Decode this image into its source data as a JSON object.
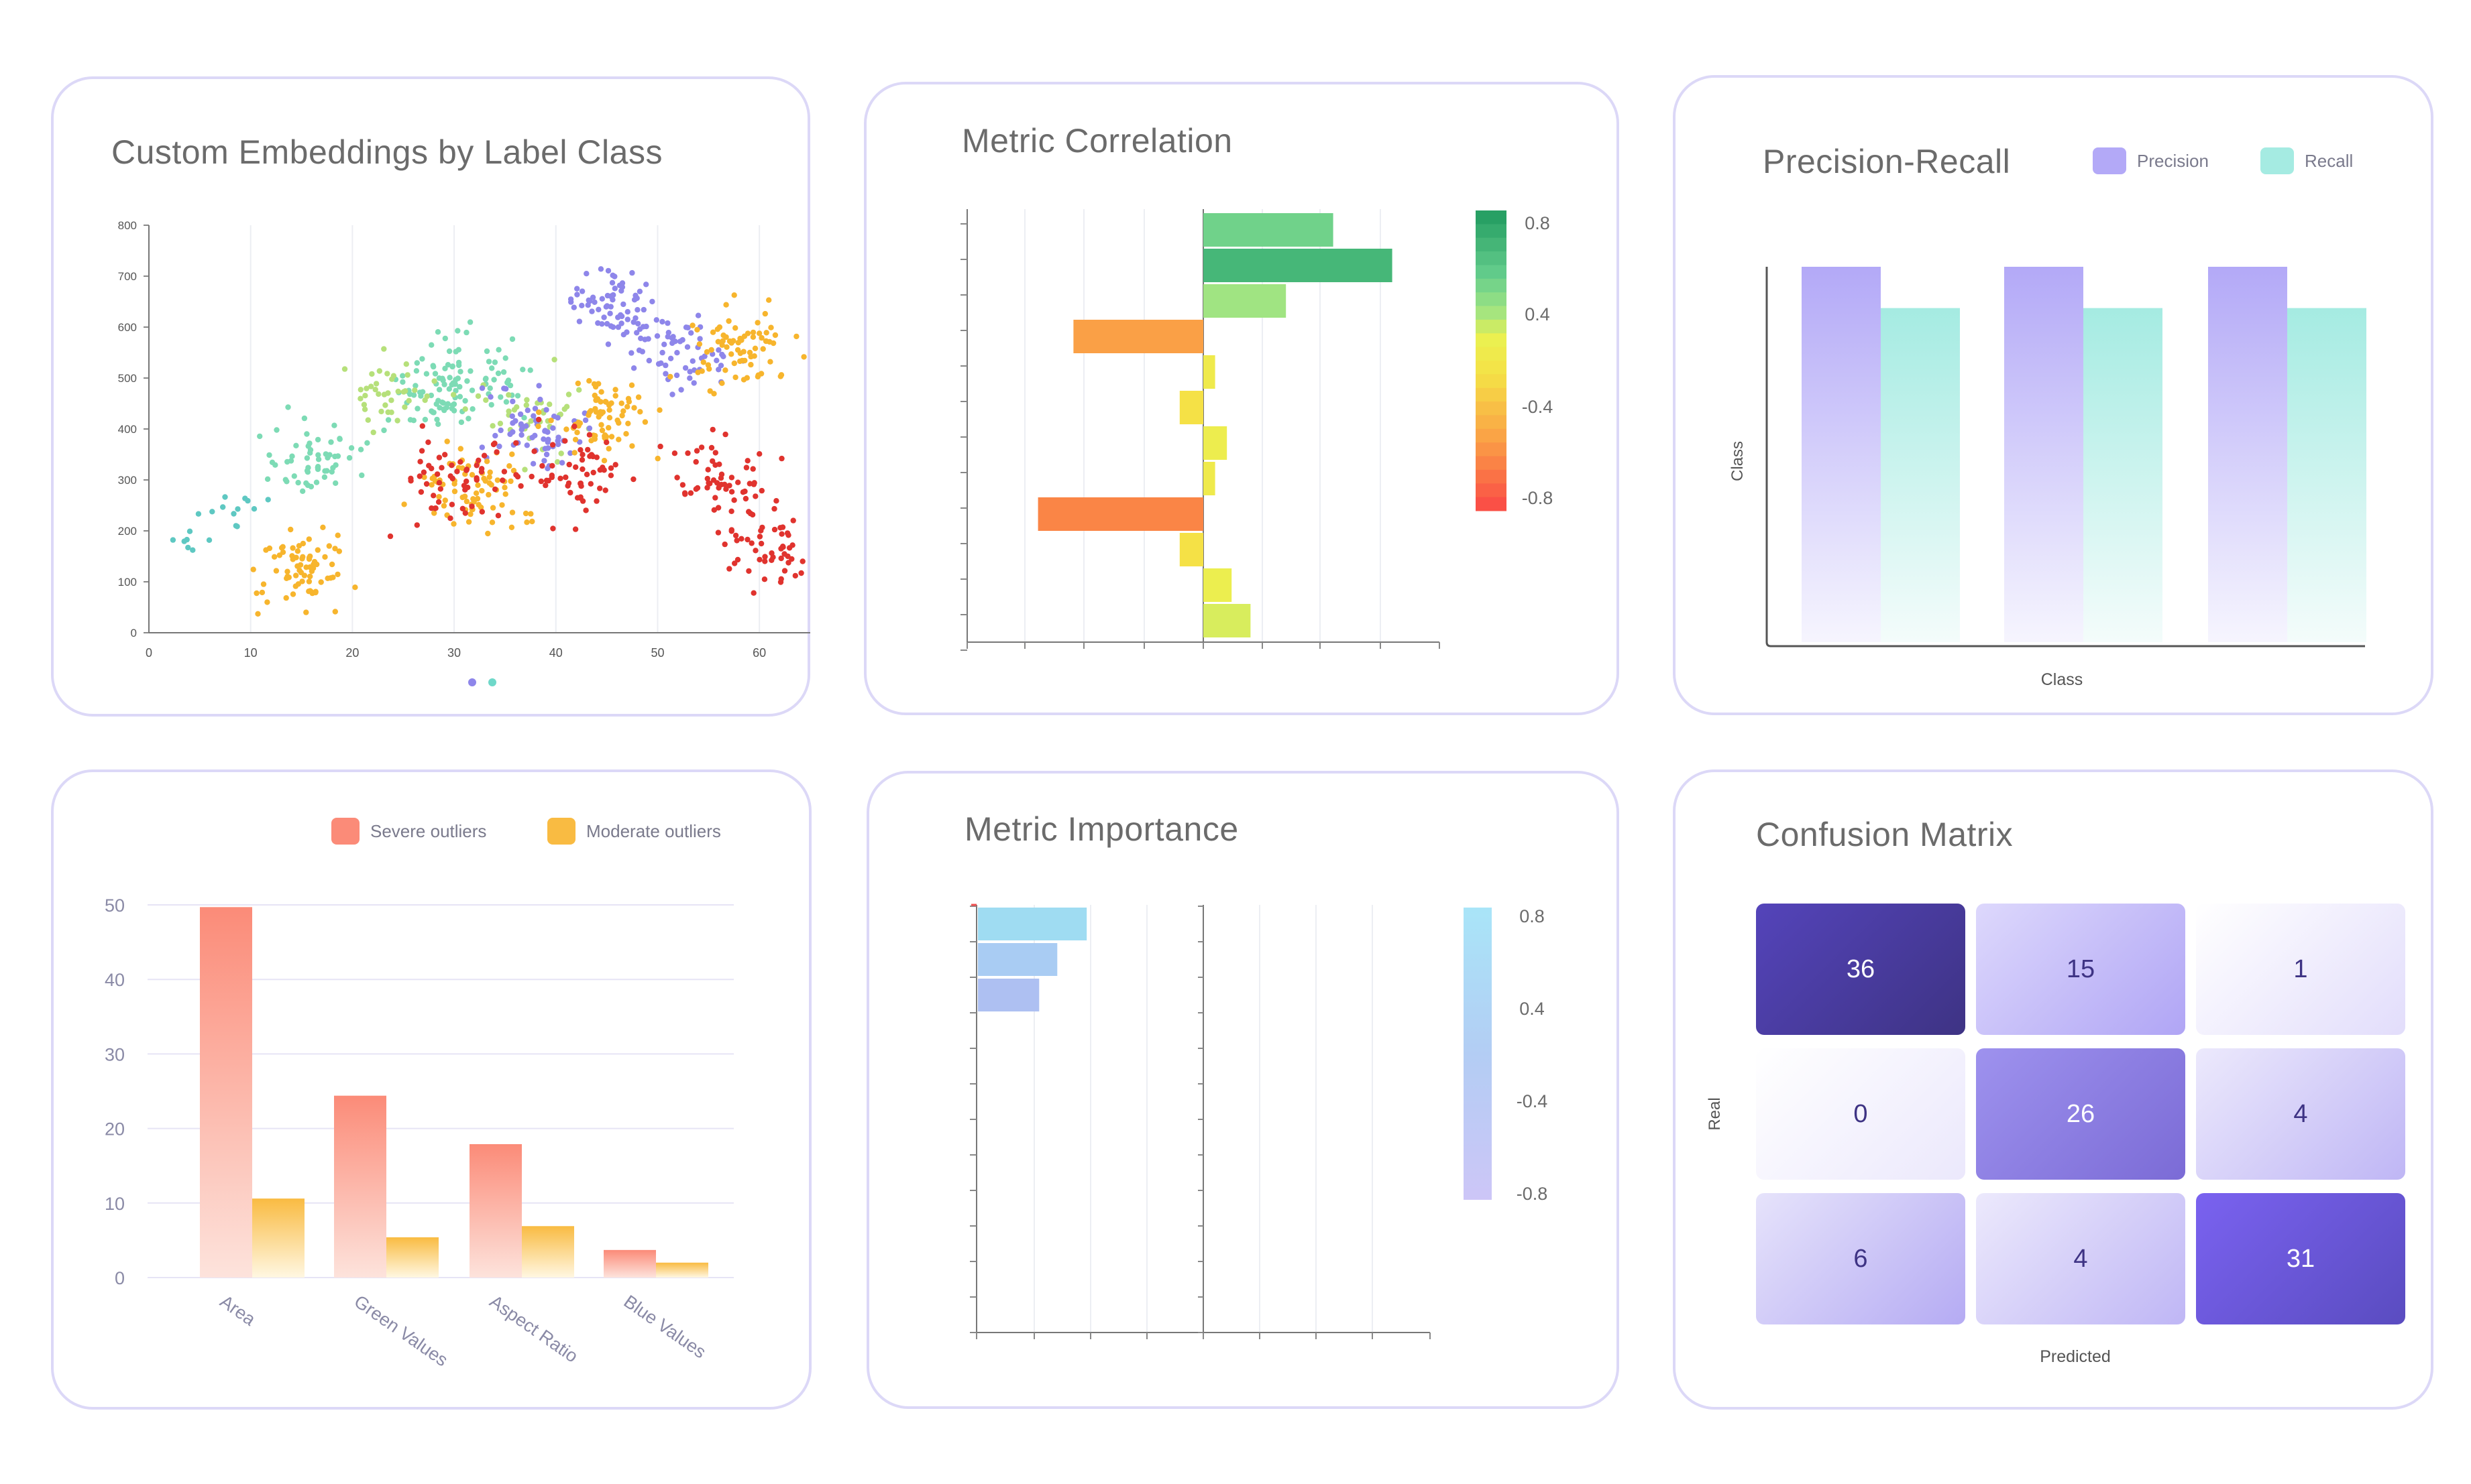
{
  "colors": {
    "card_border": "#dcd8f7",
    "title": "#6b6b6b",
    "precision": "#b3a9f7",
    "recall": "#a5ebe2",
    "severe": "#fb8b78",
    "moderate": "#f9bb42"
  },
  "cards": {
    "embeddings": {
      "title": "Custom Embeddings by Label Class"
    },
    "correlation": {
      "title": "Metric Correlation"
    },
    "precision_recall": {
      "title": "Precision-Recall",
      "legend": [
        "Precision",
        "Recall"
      ],
      "xlabel": "Class",
      "ylabel": "Class"
    },
    "outliers": {
      "legend": [
        "Severe outliers",
        "Moderate outliers"
      ]
    },
    "importance": {
      "title": "Metric Importance"
    },
    "confusion": {
      "title": "Confusion Matrix",
      "xlabel": "Predicted",
      "ylabel": "Real"
    }
  },
  "chart_data": [
    {
      "id": "embeddings",
      "type": "scatter",
      "title": "Custom Embeddings by Label Class",
      "xlim": [
        0,
        65
      ],
      "ylim": [
        0,
        800
      ],
      "x_ticks": [
        0,
        10,
        20,
        30,
        40,
        50,
        60
      ],
      "y_ticks": [
        0,
        100,
        200,
        300,
        400,
        500,
        600,
        700,
        800
      ],
      "grid": "vertical",
      "series": [
        {
          "color": "#5ec8c2",
          "centroids": [
            [
              3,
              200
            ],
            [
              8,
              230
            ]
          ],
          "count": 20
        },
        {
          "color": "#7ddbb5",
          "centroids": [
            [
              16,
              340
            ],
            [
              28,
              460
            ],
            [
              32,
              520
            ]
          ],
          "count": 170
        },
        {
          "color": "#b6e07a",
          "centroids": [
            [
              24,
              480
            ],
            [
              38,
              420
            ]
          ],
          "count": 80
        },
        {
          "color": "#8e86ea",
          "centroids": [
            [
              45,
              650
            ],
            [
              52,
              560
            ],
            [
              38,
              400
            ]
          ],
          "count": 190
        },
        {
          "color": "#f7b52d",
          "centroids": [
            [
              32,
              280
            ],
            [
              45,
              420
            ],
            [
              58,
              560
            ],
            [
              15,
              120
            ]
          ],
          "count": 300
        },
        {
          "color": "#e0332e",
          "centroids": [
            [
              42,
              310
            ],
            [
              56,
              300
            ],
            [
              62,
              170
            ],
            [
              30,
              300
            ]
          ],
          "count": 230
        }
      ],
      "pagination_dots": 2
    },
    {
      "id": "correlation",
      "type": "bar",
      "orientation": "horizontal",
      "title": "Metric Correlation",
      "xlim": [
        -1,
        1
      ],
      "values": [
        0.55,
        0.8,
        0.35,
        -0.55,
        0.05,
        -0.1,
        0.1,
        0.05,
        -0.7,
        -0.1,
        0.12,
        0.2
      ],
      "colorbar": {
        "ticks": [
          "0.8",
          "0.4",
          "-0.4",
          "-0.8"
        ],
        "scale": "red-yellow-green"
      }
    },
    {
      "id": "precision_recall",
      "type": "bar",
      "title": "Precision-Recall",
      "xlabel": "Class",
      "ylabel": "Class",
      "ylim": [
        0,
        1
      ],
      "series": [
        {
          "name": "Precision",
          "values": [
            1.0,
            1.0,
            1.0
          ]
        },
        {
          "name": "Recall",
          "values": [
            0.89,
            0.89,
            0.89
          ]
        }
      ]
    },
    {
      "id": "outliers",
      "type": "bar",
      "categories": [
        "Area",
        "Green Values",
        "Aspect Ratio",
        "Blue Values"
      ],
      "ylim": [
        0,
        50
      ],
      "y_ticks": [
        0,
        10,
        20,
        30,
        40,
        50
      ],
      "series": [
        {
          "name": "Severe outliers",
          "values": [
            49.7,
            24.4,
            17.9,
            3.7
          ]
        },
        {
          "name": "Moderate outliers",
          "values": [
            10.6,
            5.4,
            6.9,
            2.0
          ]
        }
      ]
    },
    {
      "id": "importance",
      "type": "bar",
      "orientation": "horizontal",
      "title": "Metric Importance",
      "xlim": [
        0,
        1
      ],
      "values": [
        0.48,
        0.35,
        0.27
      ],
      "colorbar": {
        "ticks": [
          "0.8",
          "0.4",
          "-0.4",
          "-0.8"
        ],
        "scale": "blue-purple"
      }
    },
    {
      "id": "confusion",
      "type": "heatmap",
      "title": "Confusion Matrix",
      "xlabel": "Predicted",
      "ylabel": "Real",
      "matrix": [
        [
          36,
          15,
          1
        ],
        [
          0,
          26,
          4
        ],
        [
          6,
          4,
          31
        ]
      ]
    }
  ]
}
